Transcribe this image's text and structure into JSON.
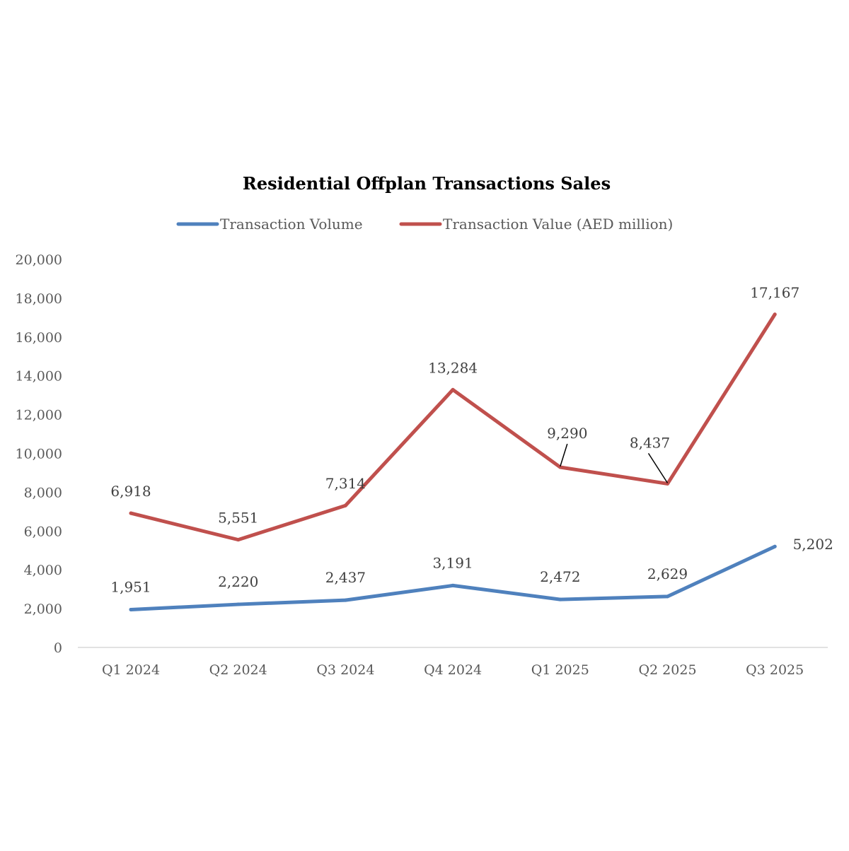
{
  "chart_data": {
    "type": "line",
    "title": "Residential Offplan Transactions Sales",
    "xlabel": "",
    "ylabel": "",
    "categories": [
      "Q1 2024",
      "Q2 2024",
      "Q3 2024",
      "Q4 2024",
      "Q1 2025",
      "Q2 2025",
      "Q3 2025"
    ],
    "ylim": [
      0,
      20000
    ],
    "yticks": [
      0,
      2000,
      4000,
      6000,
      8000,
      10000,
      12000,
      14000,
      16000,
      18000,
      20000
    ],
    "ytick_labels": [
      "0",
      "2,000",
      "4,000",
      "6,000",
      "8,000",
      "10,000",
      "12,000",
      "14,000",
      "16,000",
      "18,000",
      "20,000"
    ],
    "grid": false,
    "legend_position": "top",
    "series": [
      {
        "name": "Transaction Volume",
        "color": "#4F81BD",
        "values": [
          1951,
          2220,
          2437,
          3191,
          2472,
          2629,
          5202
        ],
        "labels": [
          "1,951",
          "2,220",
          "2,437",
          "3,191",
          "2,472",
          "2,629",
          "5,202"
        ]
      },
      {
        "name": "Transaction Value (AED million)",
        "color": "#C0504D",
        "values": [
          6918,
          5551,
          7314,
          13284,
          9290,
          8437,
          17167
        ],
        "labels": [
          "6,918",
          "5,551",
          "7,314",
          "13,284",
          "9,290",
          "8,437",
          "17,167"
        ]
      }
    ]
  }
}
